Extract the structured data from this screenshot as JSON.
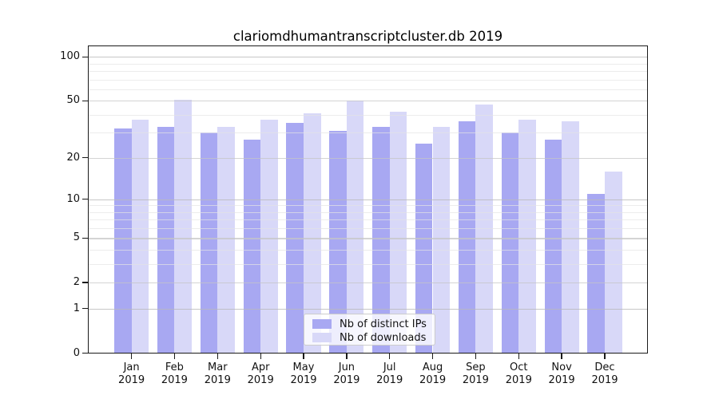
{
  "title": "clariomdhumantranscriptcluster.db 2019",
  "chart_data": {
    "type": "bar",
    "title": "clariomdhumantranscriptcluster.db 2019",
    "categories": [
      "Jan",
      "Feb",
      "Mar",
      "Apr",
      "May",
      "Jun",
      "Jul",
      "Aug",
      "Sep",
      "Oct",
      "Nov",
      "Dec"
    ],
    "x_year": "2019",
    "series": [
      {
        "name": "Nb of distinct IPs",
        "color": "#a8a8f2",
        "values": [
          32,
          33,
          30,
          27,
          35,
          31,
          33,
          25,
          36,
          30,
          27,
          11
        ]
      },
      {
        "name": "Nb of downloads",
        "color": "#d8d8f8",
        "values": [
          37,
          51,
          33,
          37,
          41,
          50,
          42,
          33,
          47,
          37,
          36,
          16
        ]
      }
    ],
    "xlabel": "",
    "ylabel": "",
    "y_ticks": [
      0,
      1,
      2,
      5,
      10,
      20,
      50,
      100
    ],
    "scale": "log10(value+1), 0 at baseline",
    "ylim": [
      0,
      120
    ],
    "grid": true,
    "legend_position": "bottom-center"
  }
}
